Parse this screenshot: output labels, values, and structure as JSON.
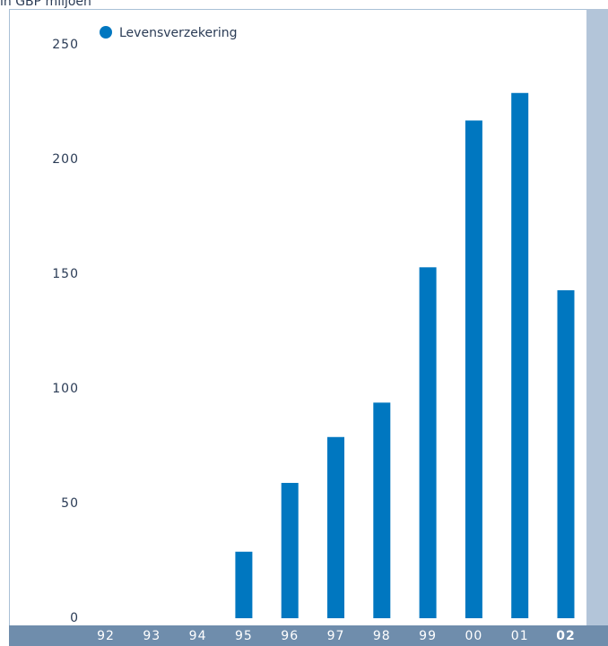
{
  "chart_data": {
    "type": "bar",
    "title": "in GBP miljoen",
    "categories": [
      "92",
      "93",
      "94",
      "95",
      "96",
      "97",
      "98",
      "99",
      "00",
      "01",
      "02"
    ],
    "series": [
      {
        "name": "Levensverzekering",
        "color": "#0077c0",
        "values": [
          0,
          0,
          0,
          29,
          59,
          79,
          94,
          153,
          217,
          229,
          143
        ]
      }
    ],
    "ylim": [
      0,
      250
    ],
    "yticks": [
      0,
      50,
      100,
      150,
      200,
      250
    ],
    "grid": false
  }
}
